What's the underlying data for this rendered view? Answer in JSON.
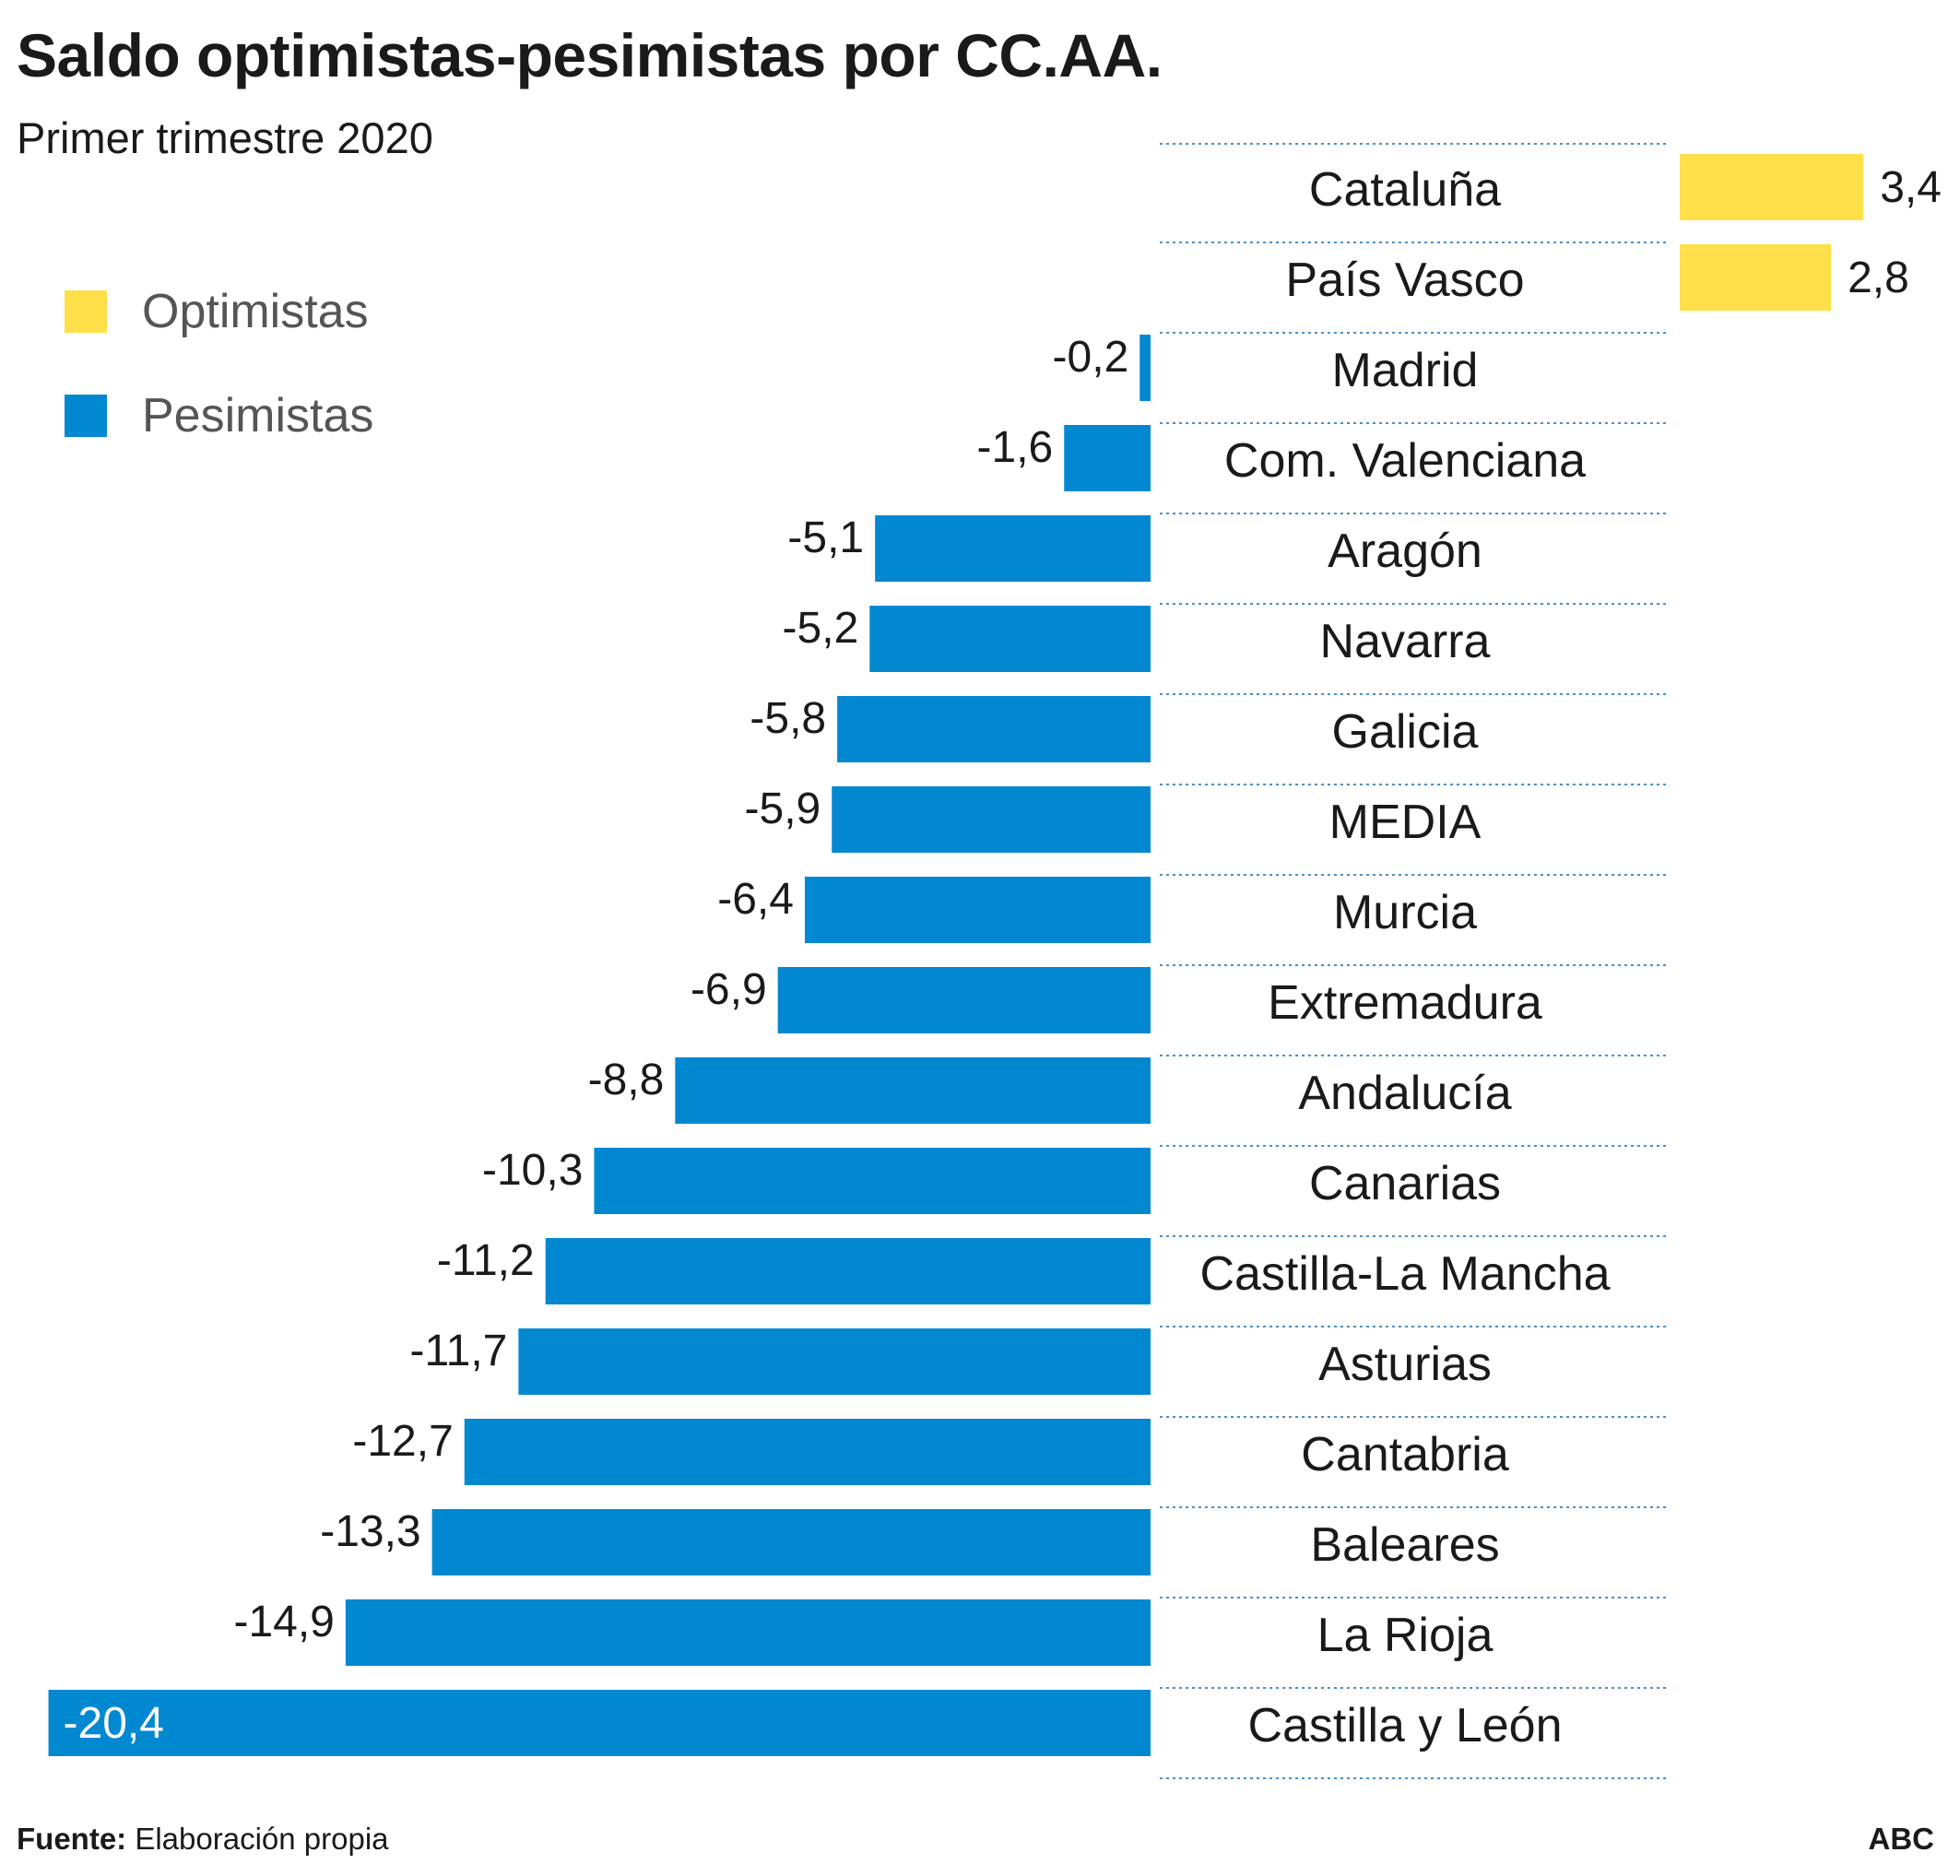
{
  "header": {
    "title": "Saldo optimistas-pesimistas por CC.AA.",
    "subtitle": "Primer trimestre 2020"
  },
  "legend": {
    "items": [
      {
        "label": "Optimistas",
        "color": "#FFDF4A"
      },
      {
        "label": "Pesimistas",
        "color": "#0288D1"
      }
    ]
  },
  "footer": {
    "source_label": "Fuente:",
    "source_text": "Elaboración propia",
    "brand": "ABC"
  },
  "chart_data": {
    "type": "bar",
    "orientation": "horizontal",
    "title": "Saldo optimistas-pesimistas por CC.AA.",
    "subtitle": "Primer trimestre 2020",
    "categories": [
      "Cataluña",
      "País Vasco",
      "Madrid",
      "Com. Valenciana",
      "Aragón",
      "Navarra",
      "Galicia",
      "MEDIA",
      "Murcia",
      "Extremadura",
      "Andalucía",
      "Canarias",
      "Castilla-La Mancha",
      "Asturias",
      "Cantabria",
      "Baleares",
      "La Rioja",
      "Castilla y León"
    ],
    "values": [
      3.4,
      2.8,
      -0.2,
      -1.6,
      -5.1,
      -5.2,
      -5.8,
      -5.9,
      -6.4,
      -6.9,
      -8.8,
      -10.3,
      -11.2,
      -11.7,
      -12.7,
      -13.3,
      -14.9,
      -20.4
    ],
    "value_labels": [
      "3,4",
      "2,8",
      "-0,2",
      "-1,6",
      "-5,1",
      "-5,2",
      "-5,8",
      "-5,9",
      "-6,4",
      "-6,9",
      "-8,8",
      "-10,3",
      "-11,2",
      "-11,7",
      "-12,7",
      "-13,3",
      "-14,9",
      "-20,4"
    ],
    "positive_color": "#FFDF4A",
    "negative_color": "#0288D1",
    "xlabel": "",
    "ylabel": "",
    "grid": false,
    "legend_position": "left",
    "category_labels_position": "center"
  }
}
